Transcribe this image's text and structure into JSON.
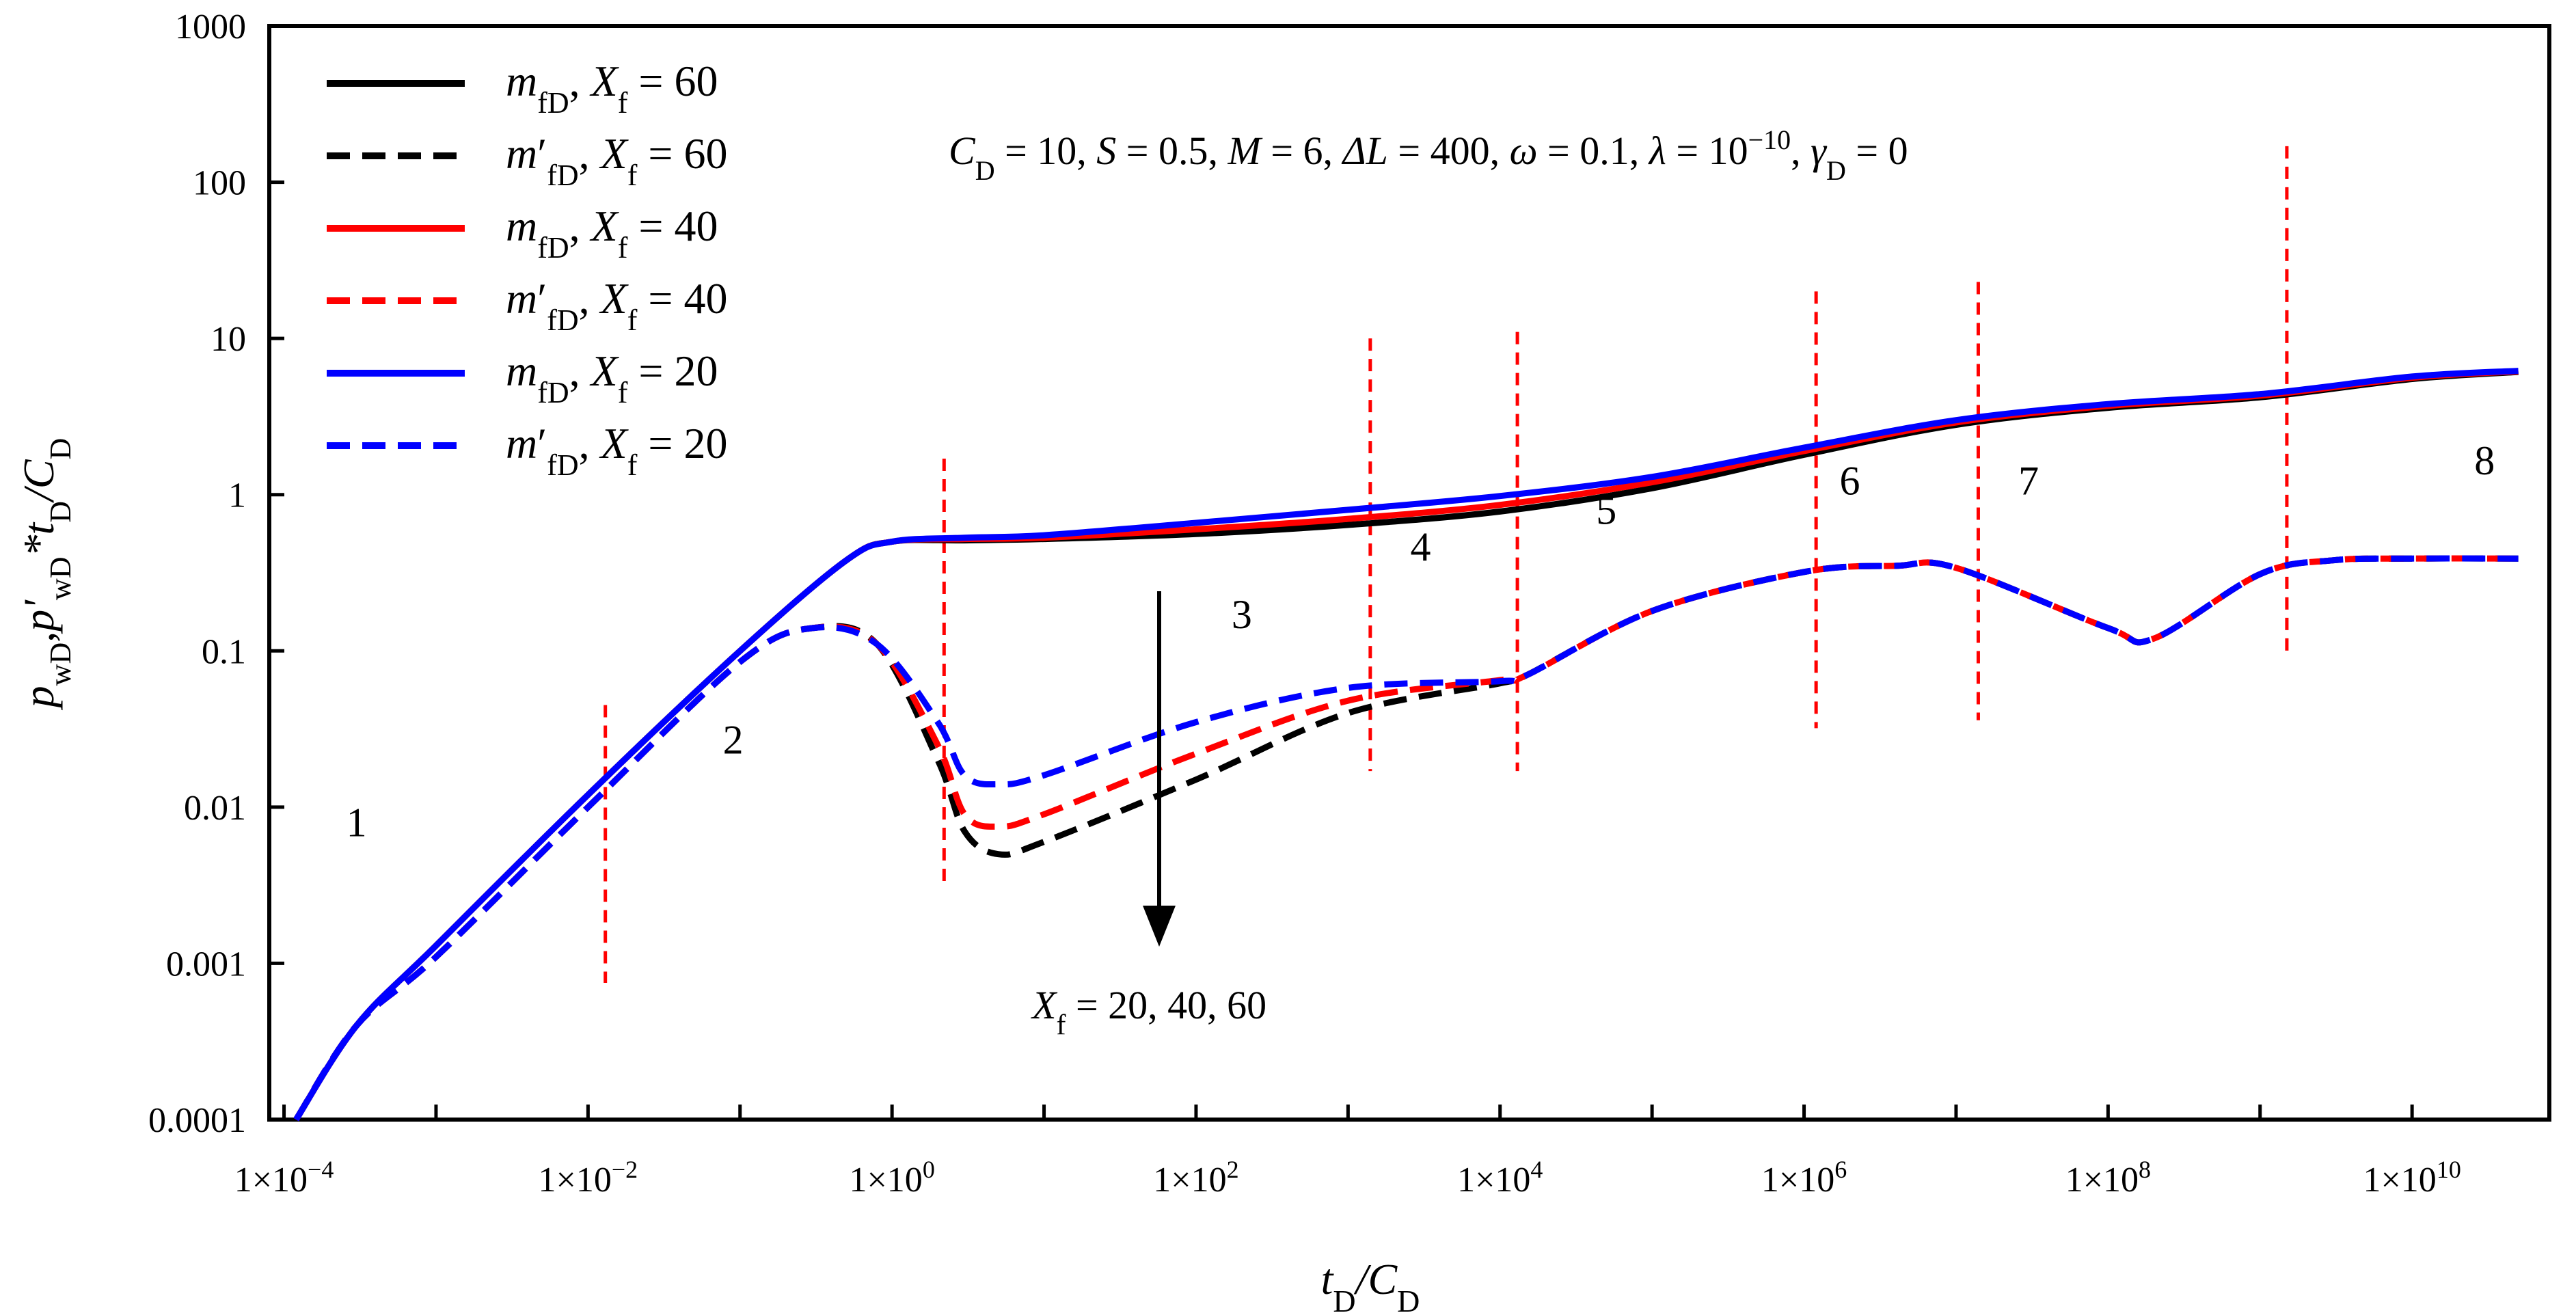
{
  "chart_data": {
    "type": "line",
    "x_scale": "log",
    "y_scale": "log",
    "xlim": [
      8e-05,
      80000000000
    ],
    "ylim": [
      0.0001,
      1000
    ],
    "xlabel": {
      "main": "t",
      "sub1": "D",
      "sep": "/C",
      "sub2": "D"
    },
    "ylabel": {
      "p": "p",
      "wd": "wD",
      "comma": ",",
      "pp": "p'",
      "star": "*t",
      "sepc": "/C",
      "d": "D"
    },
    "x_ticks": [
      {
        "value": 0.0001,
        "mant": "1×10",
        "exp": "−4"
      },
      {
        "value": 0.01,
        "mant": "1×10",
        "exp": "−2"
      },
      {
        "value": 1,
        "mant": "1×10",
        "exp": "0"
      },
      {
        "value": 100,
        "mant": "1×10",
        "exp": "2"
      },
      {
        "value": 10000,
        "mant": "1×10",
        "exp": "4"
      },
      {
        "value": 1000000,
        "mant": "1×10",
        "exp": "6"
      },
      {
        "value": 100000000,
        "mant": "1×10",
        "exp": "8"
      },
      {
        "value": 10000000000,
        "mant": "1×10",
        "exp": "10"
      }
    ],
    "y_ticks": [
      {
        "value": 0.0001,
        "label": "0.0001"
      },
      {
        "value": 0.001,
        "label": "0.001"
      },
      {
        "value": 0.01,
        "label": "0.01"
      },
      {
        "value": 0.1,
        "label": "0.1"
      },
      {
        "value": 1,
        "label": "1"
      },
      {
        "value": 10,
        "label": "10"
      },
      {
        "value": 100,
        "label": "100"
      },
      {
        "value": 1000,
        "label": "1000"
      }
    ],
    "parameters_text": {
      "cd": "C",
      "cd_sub": "D",
      "cd_val": " = 10, ",
      "s": "S",
      "s_val": " = 0.5, ",
      "m": "M",
      "m_val": " = 6, ",
      "dl": "ΔL",
      "dl_val": " = 400, ",
      "w": "ω",
      "w_val": " = 0.1, ",
      "lam": "λ",
      "lam_val": " = 10",
      "lam_exp": "−10",
      "lam_sep": ", ",
      "gam": "γ",
      "gam_sub": "D",
      "gam_val": " = 0"
    },
    "arrow_annotation": {
      "x": "X",
      "x_sub": "f",
      "text": " = 20, 40, 60"
    },
    "region_labels": [
      {
        "label": "1",
        "x": 0.0003,
        "y": 0.0065
      },
      {
        "label": "2",
        "x": 0.09,
        "y": 0.022
      },
      {
        "label": "3",
        "x": 200,
        "y": 0.14
      },
      {
        "label": "4",
        "x": 3000,
        "y": 0.38
      },
      {
        "label": "5",
        "x": 50000,
        "y": 0.65
      },
      {
        "label": "6",
        "x": 2000000,
        "y": 1.0
      },
      {
        "label": "7",
        "x": 30000000,
        "y": 1.0
      },
      {
        "label": "8",
        "x": 30000000000,
        "y": 1.35
      }
    ],
    "region_dividers": [
      {
        "x": 0.013,
        "y_top": 0.045,
        "y_bottom": 0.00075
      },
      {
        "x": 2.2,
        "y_top": 1.7,
        "y_bottom": 0.003
      },
      {
        "x": 1400,
        "y_top": 10,
        "y_bottom": 0.017
      },
      {
        "x": 13000,
        "y_top": 11,
        "y_bottom": 0.017
      },
      {
        "x": 1200000,
        "y_top": 20,
        "y_bottom": 0.032
      },
      {
        "x": 14000000,
        "y_top": 23,
        "y_bottom": 0.036
      },
      {
        "x": 1500000000,
        "y_top": 170,
        "y_bottom": 0.09
      }
    ],
    "legend": [
      {
        "m": "m",
        "prime": "",
        "sub": "fD",
        "sep": ", ",
        "x": "X",
        "xsub": "f",
        "val": " = 60",
        "color": "#000000",
        "dash": "solid"
      },
      {
        "m": "m",
        "prime": "′",
        "sub": "fD",
        "sep": ", ",
        "x": "X",
        "xsub": "f",
        "val": " = 60",
        "color": "#000000",
        "dash": "dashed"
      },
      {
        "m": "m",
        "prime": "",
        "sub": "fD",
        "sep": ", ",
        "x": "X",
        "xsub": "f",
        "val": " = 40",
        "color": "#ff0000",
        "dash": "solid"
      },
      {
        "m": "m",
        "prime": "′",
        "sub": "fD",
        "sep": ", ",
        "x": "X",
        "xsub": "f",
        "val": " = 40",
        "color": "#ff0000",
        "dash": "dashed"
      },
      {
        "m": "m",
        "prime": "",
        "sub": "fD",
        "sep": ", ",
        "x": "X",
        "xsub": "f",
        "val": " = 20",
        "color": "#0000ff",
        "dash": "solid"
      },
      {
        "m": "m",
        "prime": "′",
        "sub": "fD",
        "sep": ", ",
        "x": "X",
        "xsub": "f",
        "val": " = 20",
        "color": "#0000ff",
        "dash": "dashed"
      }
    ],
    "series": [
      {
        "name": "m_fD, Xf = 60",
        "color": "#000000",
        "dash": "solid",
        "x": [
          0.00012,
          0.0003,
          0.001,
          0.01,
          0.1,
          0.5,
          1,
          3,
          10,
          100,
          1000,
          10000,
          100000,
          1000000,
          10000000,
          100000000,
          1000000000,
          10000000000,
          50000000000
        ],
        "y": [
          0.0001,
          0.0004,
          0.0013,
          0.012,
          0.1,
          0.38,
          0.5,
          0.51,
          0.52,
          0.56,
          0.64,
          0.78,
          1.1,
          1.8,
          2.8,
          3.6,
          4.2,
          5.5,
          6.1
        ]
      },
      {
        "name": "m'_fD, Xf = 60",
        "color": "#000000",
        "dash": "dashed",
        "x": [
          0.00012,
          0.0003,
          0.001,
          0.01,
          0.1,
          0.3,
          0.8,
          2,
          3,
          5,
          10,
          100,
          1000,
          10000,
          15000,
          100000,
          1000000,
          4000000,
          10000000,
          100000000,
          200000000,
          1000000000,
          3000000000,
          10000000000,
          50000000000
        ],
        "y": [
          0.0001,
          0.0004,
          0.0011,
          0.01,
          0.085,
          0.14,
          0.11,
          0.02,
          0.007,
          0.005,
          0.006,
          0.015,
          0.04,
          0.062,
          0.07,
          0.18,
          0.32,
          0.35,
          0.34,
          0.14,
          0.12,
          0.31,
          0.38,
          0.39,
          0.39
        ]
      },
      {
        "name": "m_fD, Xf = 40",
        "color": "#ff0000",
        "dash": "solid",
        "x": [
          0.00012,
          0.0003,
          0.001,
          0.01,
          0.1,
          0.5,
          1,
          3,
          10,
          100,
          1000,
          10000,
          100000,
          1000000,
          10000000,
          100000000,
          1000000000,
          10000000000,
          50000000000
        ],
        "y": [
          0.0001,
          0.0004,
          0.0013,
          0.012,
          0.1,
          0.38,
          0.5,
          0.52,
          0.53,
          0.6,
          0.7,
          0.86,
          1.2,
          1.9,
          2.9,
          3.7,
          4.3,
          5.6,
          6.15
        ]
      },
      {
        "name": "m'_fD, Xf = 40",
        "color": "#ff0000",
        "dash": "dashed",
        "x": [
          0.00012,
          0.0003,
          0.001,
          0.01,
          0.1,
          0.3,
          0.8,
          2,
          3,
          5,
          10,
          100,
          1000,
          10000,
          15000,
          100000,
          1000000,
          4000000,
          10000000,
          100000000,
          200000000,
          1000000000,
          3000000000,
          10000000000,
          50000000000
        ],
        "y": [
          0.0001,
          0.0004,
          0.0011,
          0.01,
          0.085,
          0.14,
          0.11,
          0.025,
          0.009,
          0.0075,
          0.009,
          0.022,
          0.048,
          0.065,
          0.07,
          0.18,
          0.32,
          0.35,
          0.34,
          0.14,
          0.12,
          0.31,
          0.38,
          0.39,
          0.39
        ]
      },
      {
        "name": "m_fD, Xf = 20",
        "color": "#0000ff",
        "dash": "solid",
        "x": [
          0.00012,
          0.0003,
          0.001,
          0.01,
          0.1,
          0.5,
          1,
          3,
          10,
          100,
          1000,
          10000,
          100000,
          1000000,
          10000000,
          100000000,
          1000000000,
          10000000000,
          50000000000
        ],
        "y": [
          0.0001,
          0.0004,
          0.0013,
          0.012,
          0.1,
          0.38,
          0.5,
          0.53,
          0.55,
          0.66,
          0.8,
          0.98,
          1.3,
          2.0,
          3.0,
          3.8,
          4.4,
          5.7,
          6.2
        ]
      },
      {
        "name": "m'_fD, Xf = 20",
        "color": "#0000ff",
        "dash": "dashed",
        "x": [
          0.00012,
          0.0003,
          0.001,
          0.01,
          0.1,
          0.3,
          0.8,
          2,
          3,
          5,
          10,
          100,
          1000,
          10000,
          15000,
          100000,
          1000000,
          4000000,
          10000000,
          100000000,
          200000000,
          1000000000,
          3000000000,
          10000000000,
          50000000000
        ],
        "y": [
          0.0001,
          0.0004,
          0.0011,
          0.01,
          0.085,
          0.14,
          0.11,
          0.035,
          0.016,
          0.014,
          0.016,
          0.035,
          0.058,
          0.064,
          0.07,
          0.18,
          0.32,
          0.35,
          0.34,
          0.14,
          0.12,
          0.31,
          0.38,
          0.39,
          0.39
        ]
      }
    ]
  }
}
